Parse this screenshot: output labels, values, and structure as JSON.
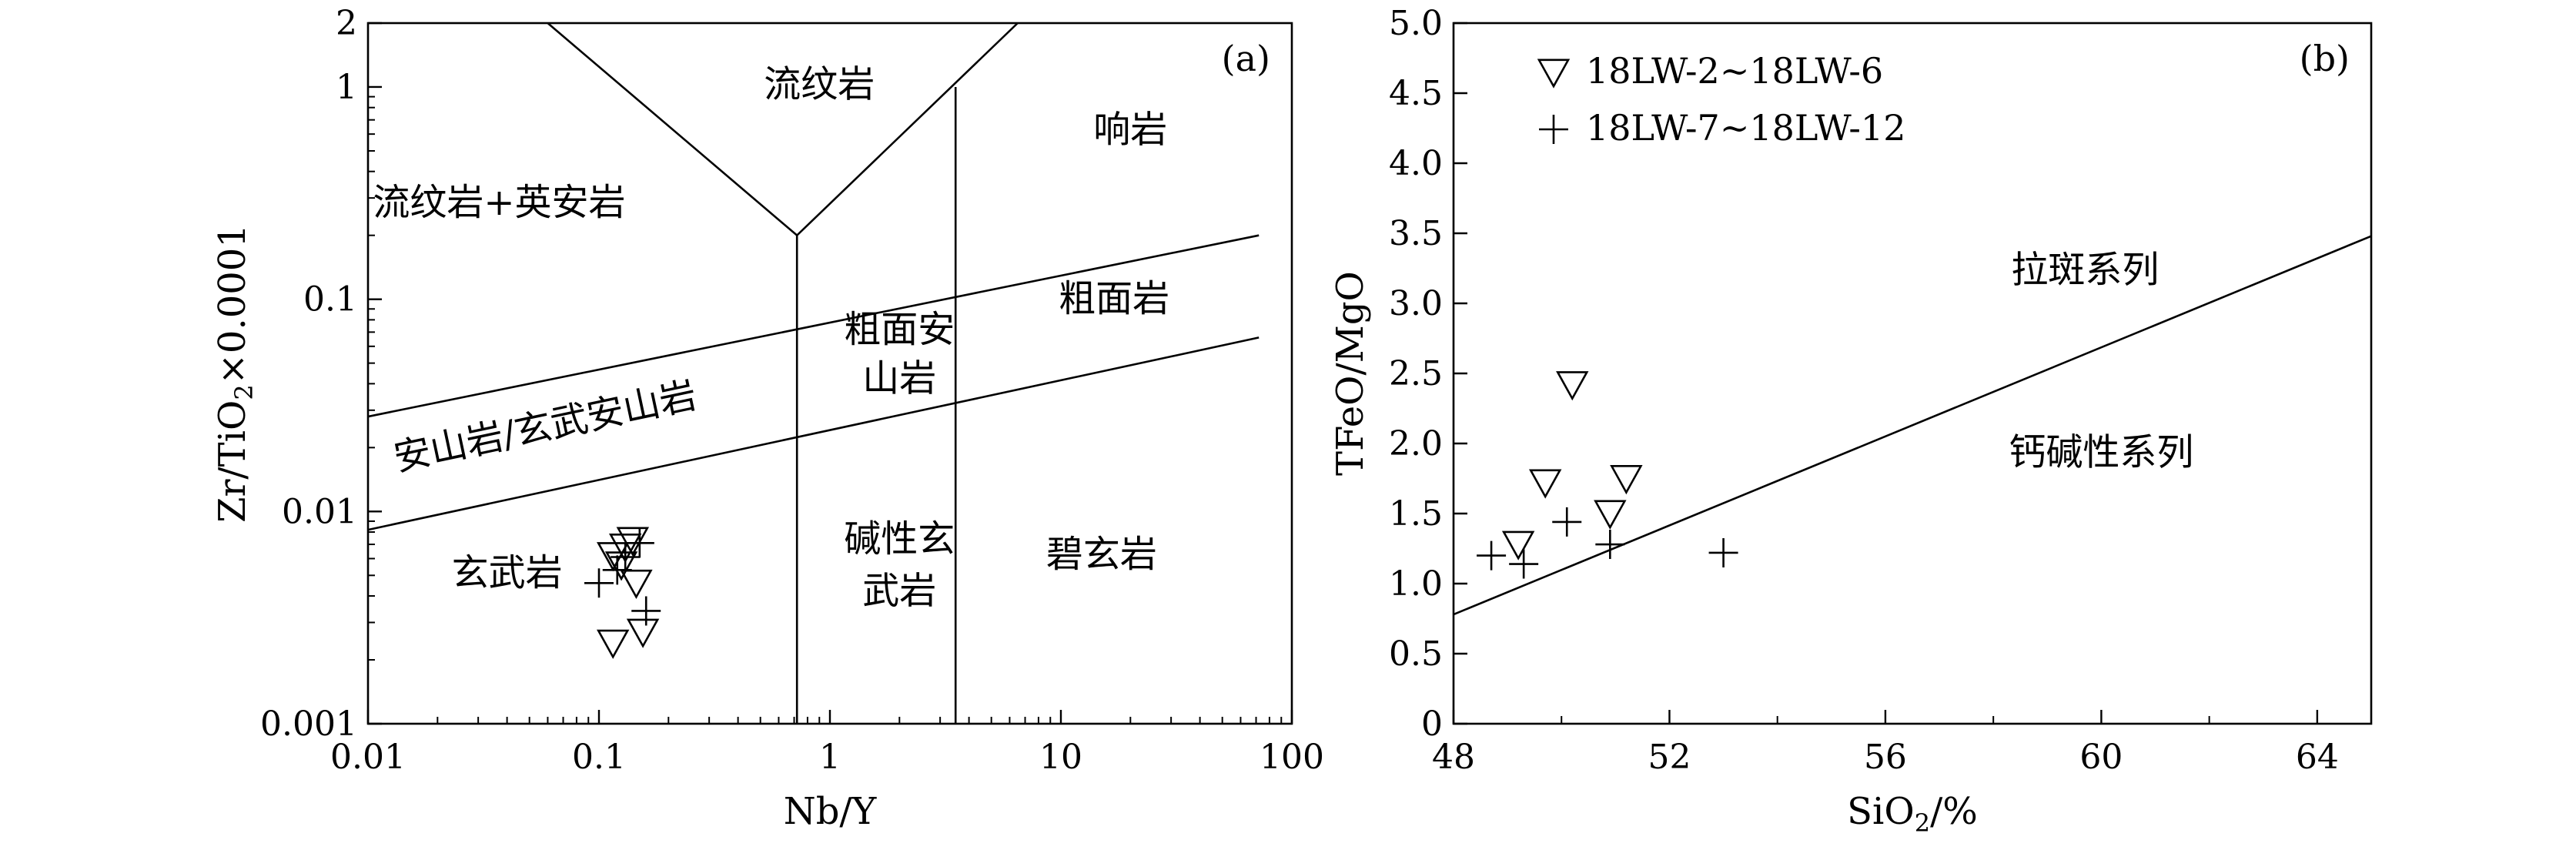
{
  "chart_data": [
    {
      "panel_label": "(a)",
      "type": "scatter",
      "xscale": "log",
      "yscale": "log",
      "xlim": [
        0.01,
        100
      ],
      "ylim": [
        0.001,
        2
      ],
      "xlabel": "Nb/Y",
      "ylabel": {
        "pre": "Zr/TiO",
        "sub": "2",
        "post": "×0.0001"
      },
      "xticks": [
        {
          "v": 0.01,
          "label": "0.01"
        },
        {
          "v": 0.1,
          "label": "0.1"
        },
        {
          "v": 1,
          "label": "1"
        },
        {
          "v": 10,
          "label": "10"
        },
        {
          "v": 100,
          "label": "100"
        }
      ],
      "yticks": [
        {
          "v": 0.001,
          "label": "0.001"
        },
        {
          "v": 0.01,
          "label": "0.01"
        },
        {
          "v": 0.1,
          "label": "0.1"
        },
        {
          "v": 1,
          "label": "1"
        },
        {
          "v": 2,
          "label": "2"
        }
      ],
      "field_labels": [
        {
          "text": "流纹岩",
          "x": 0.9,
          "y": 0.9
        },
        {
          "text": "响岩",
          "x": 20,
          "y": 0.55
        },
        {
          "text": "流纹岩+英安岩",
          "x": 0.037,
          "y": 0.25
        },
        {
          "text": "粗面安",
          "x": 2.0,
          "y": 0.063
        },
        {
          "text": "山岩",
          "x": 2.0,
          "y": 0.037
        },
        {
          "text": "粗面岩",
          "x": 17,
          "y": 0.088
        },
        {
          "text": "安山岩/玄武安山岩",
          "x": 0.06,
          "y": 0.022,
          "rotate": -12
        },
        {
          "text": "碱性玄",
          "x": 2.0,
          "y": 0.0065
        },
        {
          "text": "武岩",
          "x": 2.0,
          "y": 0.0037
        },
        {
          "text": "玄武岩",
          "x": 0.04,
          "y": 0.0045
        },
        {
          "text": "碧玄岩",
          "x": 15,
          "y": 0.0055
        }
      ],
      "boundaries": [
        [
          [
            0.06,
            2
          ],
          [
            0.72,
            0.2
          ],
          [
            6.5,
            2
          ]
        ],
        [
          [
            0.72,
            0.2
          ],
          [
            0.72,
            0.001
          ]
        ],
        [
          [
            3.5,
            1.0
          ],
          [
            3.5,
            0.001
          ]
        ],
        [
          [
            0.01,
            0.028
          ],
          [
            72,
            0.2
          ]
        ],
        [
          [
            0.01,
            0.0082
          ],
          [
            72,
            0.066
          ]
        ]
      ],
      "series": [
        {
          "marker": "triangle-down",
          "points": [
            [
              0.115,
              0.0062
            ],
            [
              0.13,
              0.0068
            ],
            [
              0.14,
              0.0073
            ],
            [
              0.125,
              0.0056
            ],
            [
              0.145,
              0.0046
            ],
            [
              0.115,
              0.0024
            ],
            [
              0.155,
              0.0027
            ]
          ]
        },
        {
          "marker": "plus",
          "points": [
            [
              0.15,
              0.0071
            ],
            [
              0.13,
              0.0061
            ],
            [
              0.12,
              0.0053
            ],
            [
              0.1,
              0.0046
            ],
            [
              0.16,
              0.0034
            ]
          ]
        }
      ]
    },
    {
      "panel_label": "(b)",
      "type": "scatter",
      "xlim": [
        48,
        65
      ],
      "ylim": [
        0,
        5.0
      ],
      "xlabel": {
        "pre": "SiO",
        "sub": "2",
        "post": "/%"
      },
      "ylabel": "TFeO/MgO",
      "xticks": [
        {
          "v": 48,
          "label": "48"
        },
        {
          "v": 52,
          "label": "52"
        },
        {
          "v": 56,
          "label": "56"
        },
        {
          "v": 60,
          "label": "60"
        },
        {
          "v": 64,
          "label": "64"
        }
      ],
      "yticks": [
        {
          "v": 0,
          "label": "0"
        },
        {
          "v": 0.5,
          "label": "0.5"
        },
        {
          "v": 1.0,
          "label": "1.0"
        },
        {
          "v": 1.5,
          "label": "1.5"
        },
        {
          "v": 2.0,
          "label": "2.0"
        },
        {
          "v": 2.5,
          "label": "2.5"
        },
        {
          "v": 3.0,
          "label": "3.0"
        },
        {
          "v": 3.5,
          "label": "3.5"
        },
        {
          "v": 4.0,
          "label": "4.0"
        },
        {
          "v": 4.5,
          "label": "4.5"
        },
        {
          "v": 5.0,
          "label": "5.0"
        }
      ],
      "field_labels": [
        {
          "text": "拉斑系列",
          "x": 59.7,
          "y": 3.15
        },
        {
          "text": "钙碱性系列",
          "x": 60,
          "y": 1.85
        }
      ],
      "boundaries": [
        [
          [
            48,
            0.78
          ],
          [
            65,
            3.48
          ]
        ]
      ],
      "legend": [
        {
          "marker": "triangle-down",
          "label": "18LW-2~18LW-6"
        },
        {
          "marker": "plus",
          "label": "18LW-7~18LW-12"
        }
      ],
      "series": [
        {
          "name": "18LW-2~18LW-6",
          "marker": "triangle-down",
          "points": [
            [
              50.2,
              2.42
            ],
            [
              49.7,
              1.72
            ],
            [
              49.2,
              1.28
            ],
            [
              50.9,
              1.5
            ],
            [
              51.2,
              1.75
            ]
          ]
        },
        {
          "name": "18LW-7~18LW-12",
          "marker": "plus",
          "points": [
            [
              48.7,
              1.2
            ],
            [
              49.3,
              1.14
            ],
            [
              50.1,
              1.44
            ],
            [
              50.9,
              1.28
            ],
            [
              53.0,
              1.22
            ]
          ]
        }
      ]
    }
  ]
}
